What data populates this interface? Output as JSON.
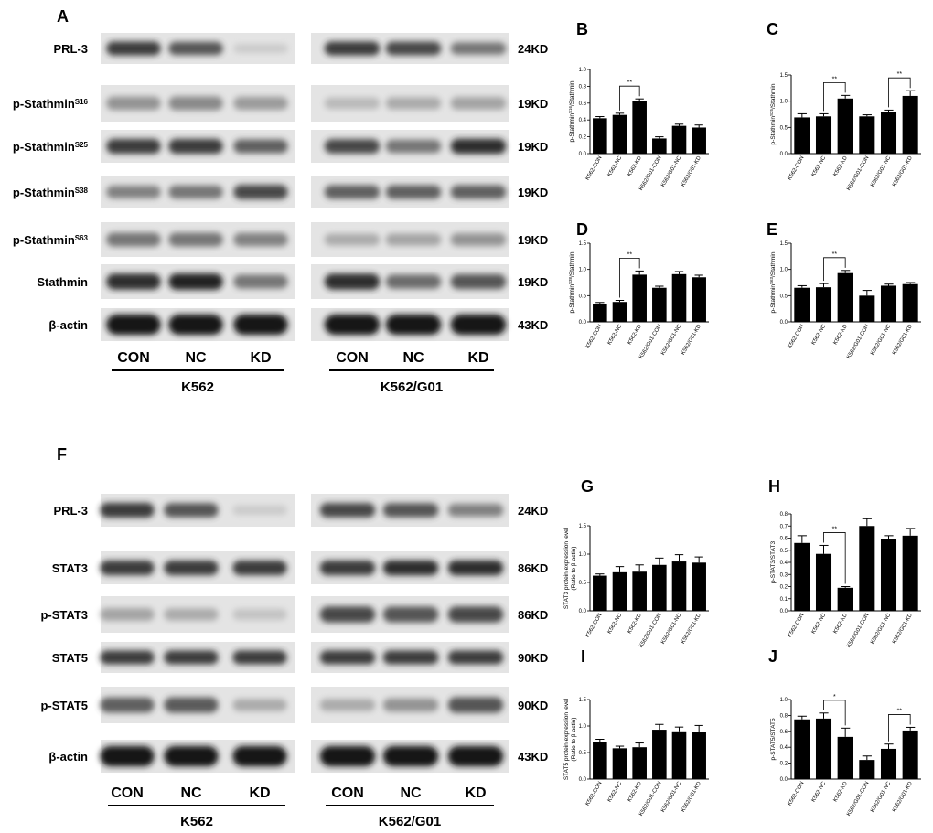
{
  "blots": [
    {
      "id": "A",
      "letter": "A",
      "rows": [
        {
          "label": "PRL-3",
          "kd": "24KD"
        },
        {
          "label": "p-Stathmin",
          "sup": "S16",
          "kd": "19KD"
        },
        {
          "label": "p-Stathmin",
          "sup": "S25",
          "kd": "19KD"
        },
        {
          "label": "p-Stathmin",
          "sup": "S38",
          "kd": "19KD"
        },
        {
          "label": "p-Stathmin",
          "sup": "S63",
          "kd": "19KD"
        },
        {
          "label": "Stathmin",
          "kd": "19KD"
        },
        {
          "label": "β-actin",
          "kd": "43KD"
        }
      ],
      "lanes": [
        "CON",
        "NC",
        "KD"
      ],
      "groups": [
        "K562",
        "K562/G01"
      ]
    },
    {
      "id": "F",
      "letter": "F",
      "rows": [
        {
          "label": "PRL-3",
          "kd": "24KD"
        },
        {
          "label": "STAT3",
          "kd": "86KD"
        },
        {
          "label": "p-STAT3",
          "kd": "86KD"
        },
        {
          "label": "STAT5",
          "kd": "90KD"
        },
        {
          "label": "p-STAT5",
          "kd": "90KD"
        },
        {
          "label": "β-actin",
          "kd": "43KD"
        }
      ],
      "lanes": [
        "CON",
        "NC",
        "KD"
      ],
      "groups": [
        "K562",
        "K562/G01"
      ]
    }
  ],
  "chart_data": [
    {
      "id": "B",
      "letter": "B",
      "type": "bar",
      "ylabel_pre": "p-Stathmin",
      "ylabel_sup": "S16",
      "ylabel_post": "/Stathmin",
      "categories": [
        "K562-CON",
        "K562-NC",
        "K562-KD",
        "K562/G01-CON",
        "K562/G01-NC",
        "K562/G01-KD"
      ],
      "values": [
        0.42,
        0.46,
        0.62,
        0.18,
        0.33,
        0.31
      ],
      "errors": [
        0.02,
        0.02,
        0.03,
        0.02,
        0.02,
        0.03
      ],
      "ylim": [
        0,
        1.0
      ],
      "yticks": [
        "0.0",
        "0.2",
        "0.4",
        "0.6",
        "0.8",
        "1.0"
      ],
      "sig": [
        {
          "from": 1,
          "to": 2,
          "label": "**"
        }
      ]
    },
    {
      "id": "C",
      "letter": "C",
      "type": "bar",
      "ylabel_pre": "p-Stathmin",
      "ylabel_sup": "S25",
      "ylabel_post": "/Stathmin",
      "categories": [
        "K562-CON",
        "K562-NC",
        "K562-KD",
        "K562/G01-CON",
        "K562/G01-NC",
        "K562/G01-KD"
      ],
      "values": [
        0.69,
        0.71,
        1.05,
        0.71,
        0.79,
        1.1
      ],
      "errors": [
        0.07,
        0.05,
        0.06,
        0.03,
        0.04,
        0.1
      ],
      "ylim": [
        0,
        1.5
      ],
      "yticks": [
        "0.0",
        "0.5",
        "1.0",
        "1.5"
      ],
      "sig": [
        {
          "from": 1,
          "to": 2,
          "label": "**"
        },
        {
          "from": 4,
          "to": 5,
          "label": "**"
        }
      ]
    },
    {
      "id": "D",
      "letter": "D",
      "type": "bar",
      "ylabel_pre": "p-Stathmin",
      "ylabel_sup": "S38",
      "ylabel_post": "/Stathmin",
      "categories": [
        "K562-CON",
        "K562-NC",
        "K562-KD",
        "K562/G01-CON",
        "K562/G01-NC",
        "K562/G01-KD"
      ],
      "values": [
        0.34,
        0.38,
        0.9,
        0.65,
        0.91,
        0.85
      ],
      "errors": [
        0.03,
        0.03,
        0.07,
        0.03,
        0.05,
        0.04
      ],
      "ylim": [
        0,
        1.5
      ],
      "yticks": [
        "0.0",
        "0.5",
        "1.0",
        "1.5"
      ],
      "sig": [
        {
          "from": 1,
          "to": 2,
          "label": "**"
        }
      ]
    },
    {
      "id": "E",
      "letter": "E",
      "type": "bar",
      "ylabel_pre": "p-Stathmin",
      "ylabel_sup": "S63",
      "ylabel_post": "/Stathmin",
      "categories": [
        "K562-CON",
        "K562-NC",
        "K562-KD",
        "K562/G01-CON",
        "K562/G01-NC",
        "K562/G01-KD"
      ],
      "values": [
        0.65,
        0.66,
        0.93,
        0.5,
        0.69,
        0.72
      ],
      "errors": [
        0.04,
        0.07,
        0.05,
        0.1,
        0.03,
        0.03
      ],
      "ylim": [
        0,
        1.5
      ],
      "yticks": [
        "0.0",
        "0.5",
        "1.0",
        "1.5"
      ],
      "sig": [
        {
          "from": 1,
          "to": 2,
          "label": "**"
        }
      ]
    },
    {
      "id": "G",
      "letter": "G",
      "type": "bar",
      "ylabel_pre": "STAT3 protein expression level",
      "ylabel_line2": "(Ratio to β-actin)",
      "categories": [
        "K562-CON",
        "K562-NC",
        "K562-KD",
        "K562/G01-CON",
        "K562/G01-NC",
        "K562/G01-KD"
      ],
      "values": [
        0.62,
        0.68,
        0.69,
        0.81,
        0.87,
        0.85
      ],
      "errors": [
        0.03,
        0.1,
        0.12,
        0.12,
        0.12,
        0.1
      ],
      "ylim": [
        0,
        1.5
      ],
      "yticks": [
        "0.0",
        "0.5",
        "1.0",
        "1.5"
      ],
      "sig": []
    },
    {
      "id": "H",
      "letter": "H",
      "type": "bar",
      "ylabel_pre": "p-STAT3/STAT3",
      "categories": [
        "K562-CON",
        "K562-NC",
        "K562-KD",
        "K562/G01-CON",
        "K562/G01-NC",
        "K562/G01-KD"
      ],
      "values": [
        0.56,
        0.47,
        0.19,
        0.7,
        0.59,
        0.62
      ],
      "errors": [
        0.06,
        0.07,
        0.01,
        0.06,
        0.03,
        0.06
      ],
      "ylim": [
        0,
        0.8
      ],
      "yticks": [
        "0.0",
        "0.1",
        "0.2",
        "0.3",
        "0.4",
        "0.5",
        "0.6",
        "0.7",
        "0.8"
      ],
      "sig": [
        {
          "from": 1,
          "to": 2,
          "label": "**"
        }
      ]
    },
    {
      "id": "I",
      "letter": "I",
      "type": "bar",
      "ylabel_pre": "STAT5 protein expression level",
      "ylabel_line2": "(Ratio to β-actin)",
      "categories": [
        "K562-CON",
        "K562-NC",
        "K562-KD",
        "K562/G01-CON",
        "K562/G01-NC",
        "K562/G01-KD"
      ],
      "values": [
        0.7,
        0.58,
        0.6,
        0.93,
        0.9,
        0.89
      ],
      "errors": [
        0.05,
        0.04,
        0.08,
        0.1,
        0.08,
        0.12
      ],
      "ylim": [
        0,
        1.5
      ],
      "yticks": [
        "0.0",
        "0.5",
        "1.0",
        "1.5"
      ],
      "sig": []
    },
    {
      "id": "J",
      "letter": "J",
      "type": "bar",
      "ylabel_pre": "p-STAT5/STAT5",
      "categories": [
        "K562-CON",
        "K562-NC",
        "K562-KD",
        "K562/G01-CON",
        "K562/G01-NC",
        "K562/G01-KD"
      ],
      "values": [
        0.75,
        0.76,
        0.53,
        0.24,
        0.38,
        0.61
      ],
      "errors": [
        0.04,
        0.07,
        0.11,
        0.05,
        0.06,
        0.04
      ],
      "ylim": [
        0,
        1.0
      ],
      "yticks": [
        "0.0",
        "0.2",
        "0.4",
        "0.6",
        "0.8",
        "1.0"
      ],
      "sig": [
        {
          "from": 1,
          "to": 2,
          "label": "*"
        },
        {
          "from": 4,
          "to": 5,
          "label": "**"
        }
      ]
    }
  ]
}
